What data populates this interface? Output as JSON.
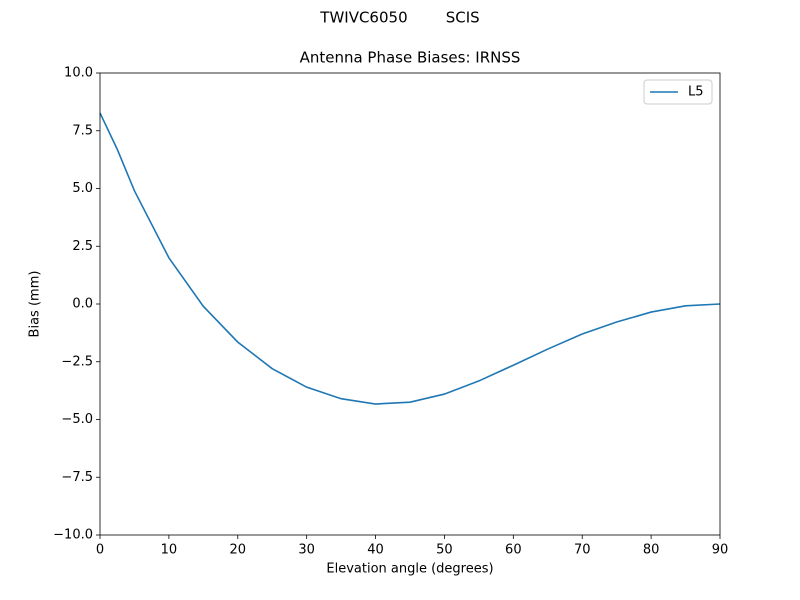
{
  "chart_data": {
    "type": "line",
    "suptitle": "TWIVC6050        SCIS",
    "title": "Antenna Phase Biases: IRNSS",
    "xlabel": "Elevation angle (degrees)",
    "ylabel": "Bias (mm)",
    "x": [
      0,
      2.5,
      5,
      10,
      15,
      20,
      25,
      30,
      35,
      40,
      45,
      50,
      55,
      60,
      65,
      70,
      75,
      80,
      85,
      90
    ],
    "series": [
      {
        "name": "L5",
        "color": "#1f77b4",
        "values": [
          8.27,
          6.7,
          4.9,
          2.0,
          -0.1,
          -1.65,
          -2.8,
          -3.6,
          -4.1,
          -4.33,
          -4.25,
          -3.9,
          -3.33,
          -2.65,
          -1.95,
          -1.3,
          -0.78,
          -0.35,
          -0.08,
          0.0
        ]
      }
    ],
    "xlim": [
      0,
      90
    ],
    "ylim": [
      -10,
      10
    ],
    "xticks": [
      0,
      10,
      20,
      30,
      40,
      50,
      60,
      70,
      80,
      90
    ],
    "yticks": [
      {
        "value": 10,
        "label": "10.0"
      },
      {
        "value": 7.5,
        "label": "7.5"
      },
      {
        "value": 5,
        "label": "5.0"
      },
      {
        "value": 2.5,
        "label": "2.5"
      },
      {
        "value": 0,
        "label": "0.0"
      },
      {
        "value": -2.5,
        "label": "−2.5"
      },
      {
        "value": -5,
        "label": "−5.0"
      },
      {
        "value": -7.5,
        "label": "−7.5"
      },
      {
        "value": -10,
        "label": "−10.0"
      }
    ],
    "legend": "upper right",
    "grid": false
  }
}
